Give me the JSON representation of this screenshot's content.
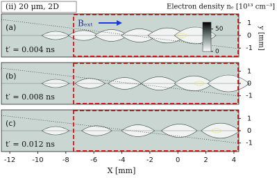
{
  "header": {
    "title": "(ii) 20 μm, 2D",
    "colorbar_label": "Electron density nₑ [10¹³ cm⁻³]",
    "field_label": "Bₑₓₜ"
  },
  "chart_data": [
    {
      "type": "heatmap",
      "label": "(a)",
      "annotation": "t′ = 0.004 ns",
      "xlim": [
        -12.6,
        4.35
      ],
      "ylim": [
        -1.7,
        1.7
      ],
      "yticks": [
        -1,
        0,
        1
      ],
      "ylabel": "y [mm]",
      "colorbar": {
        "lim": [
          0,
          65
        ],
        "ticks": [
          0,
          50
        ]
      }
    },
    {
      "type": "heatmap",
      "label": "(b)",
      "annotation": "t′ = 0.008 ns",
      "xlim": [
        -12.6,
        4.35
      ],
      "ylim": [
        -1.7,
        1.7
      ],
      "yticks": [
        -1,
        0,
        1
      ]
    },
    {
      "type": "heatmap",
      "label": "(c)",
      "annotation": "t′ = 0.012 ns",
      "xlim": [
        -12.6,
        4.35
      ],
      "ylim": [
        -1.7,
        1.7
      ],
      "yticks": [
        -1,
        0,
        1
      ],
      "xticks": [
        -12,
        -10,
        -8,
        -6,
        -4,
        -2,
        0,
        2,
        4
      ],
      "xlabel": "X [mm]"
    }
  ]
}
